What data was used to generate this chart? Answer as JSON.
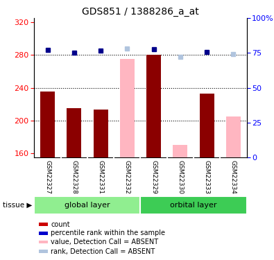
{
  "title": "GDS851 / 1388286_a_at",
  "samples": [
    "GSM22327",
    "GSM22328",
    "GSM22331",
    "GSM22332",
    "GSM22329",
    "GSM22330",
    "GSM22333",
    "GSM22334"
  ],
  "bar_values": [
    235,
    215,
    213,
    null,
    280,
    null,
    233,
    null
  ],
  "bar_absent_values": [
    null,
    null,
    null,
    275,
    null,
    170,
    null,
    205
  ],
  "rank_values": [
    286,
    283,
    285,
    null,
    287,
    null,
    284,
    null
  ],
  "rank_absent_values": [
    null,
    null,
    null,
    288,
    null,
    278,
    null,
    281
  ],
  "ylim_left": [
    155,
    325
  ],
  "ylim_right": [
    0,
    100
  ],
  "yticks_left": [
    160,
    200,
    240,
    280,
    320
  ],
  "yticks_right": [
    0,
    25,
    50,
    75,
    100
  ],
  "gridlines": [
    200,
    240,
    280
  ],
  "bar_color": "#8B0000",
  "bar_absent_color": "#FFB6C1",
  "rank_color": "#00008B",
  "rank_absent_color": "#B0C4DE",
  "global_layer_color": "#90EE90",
  "orbital_layer_color": "#3DCC55",
  "sample_bg_color": "#C8C8C8",
  "tissue_label": "tissue",
  "background_color": "#ffffff",
  "legend_items": [
    {
      "label": "count",
      "color": "#CC0000"
    },
    {
      "label": "percentile rank within the sample",
      "color": "#0000CC"
    },
    {
      "label": "value, Detection Call = ABSENT",
      "color": "#FFB6C1"
    },
    {
      "label": "rank, Detection Call = ABSENT",
      "color": "#B0C4DE"
    }
  ]
}
